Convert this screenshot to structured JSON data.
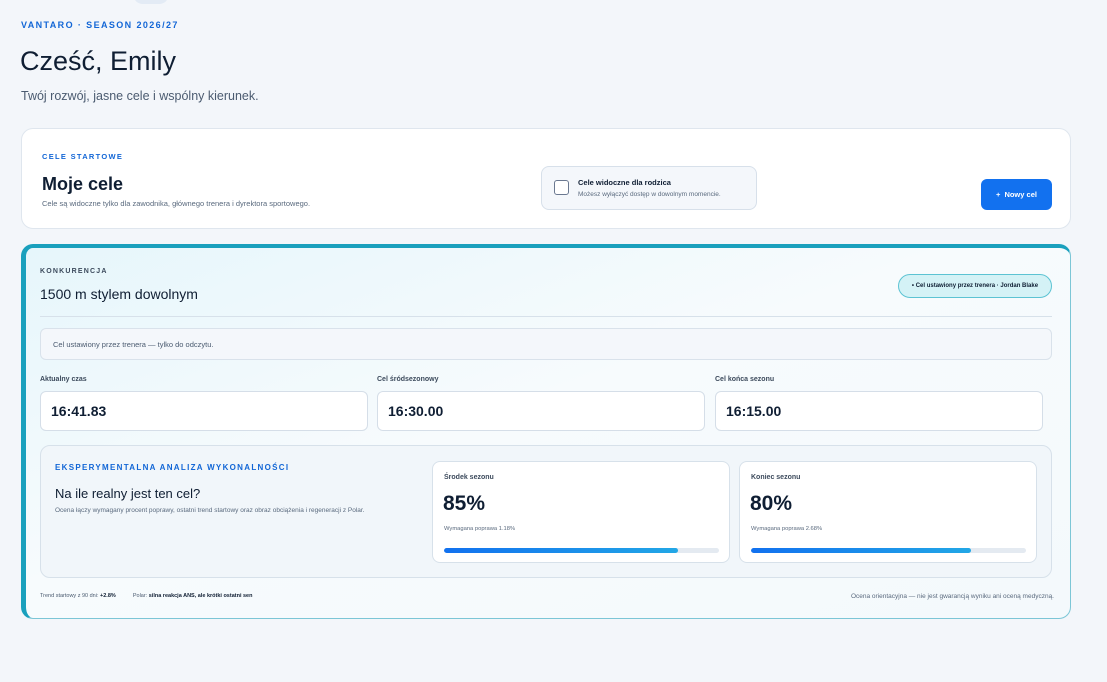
{
  "header": {
    "eyebrow": "VANTARO · SEASON 2026/27",
    "greeting": "Cześć, Emily",
    "tagline": "Twój rozwój, jasne cele i wspólny kierunek."
  },
  "goals": {
    "kicker": "CELE STARTOWE",
    "title": "Moje cele",
    "description": "Cele są widoczne tylko dla zawodnika, głównego trenera i dyrektora sportowego.",
    "parent_visibility": {
      "label": "Cele widoczne dla rodzica",
      "hint": "Możesz wyłączyć dostęp w dowolnym momencie.",
      "checked": false
    },
    "new_goal_label": "Nowy cel",
    "new_goal_icon": "+"
  },
  "competition": {
    "kicker": "KONKURENCJA",
    "event": "1500 m stylem dowolnym",
    "coach_badge": "• Cel ustawiony przez trenera · Jordan Blake",
    "readonly_note": "Cel ustawiony przez trenera — tylko do odczytu.",
    "times": [
      {
        "label": "Aktualny czas",
        "value": "16:41.83"
      },
      {
        "label": "Cel śródsezonowy",
        "value": "16:30.00"
      },
      {
        "label": "Cel końca sezonu",
        "value": "16:15.00"
      }
    ],
    "analysis": {
      "kicker": "EKSPERYMENTALNA ANALIZA WYKONALNOŚCI",
      "question": "Na ile realny jest ten cel?",
      "description": "Ocena łączy wymagany procent poprawy, ostatni trend startowy oraz obraz obciążenia i regeneracji z Polar.",
      "cards": [
        {
          "label": "Środek sezonu",
          "value": "85%",
          "required": "Wymagana poprawa 1.18%",
          "progress": 85
        },
        {
          "label": "Koniec sezonu",
          "value": "80%",
          "required": "Wymagana poprawa 2.68%",
          "progress": 80
        }
      ]
    },
    "footer": {
      "trend_label": "Trend startowy z 90 dni:",
      "trend_value": "+2.8%",
      "polar_label": "Polar:",
      "polar_value": "silna reakcja ANS, ale krótki ostatni sen",
      "disclaimer": "Ocena orientacyjna — nie jest gwarancją wyniku ani oceną medyczną."
    }
  },
  "colors": {
    "accent": "#1271ef",
    "teal": "#1aa0bd",
    "background": "#f3f6fa"
  }
}
